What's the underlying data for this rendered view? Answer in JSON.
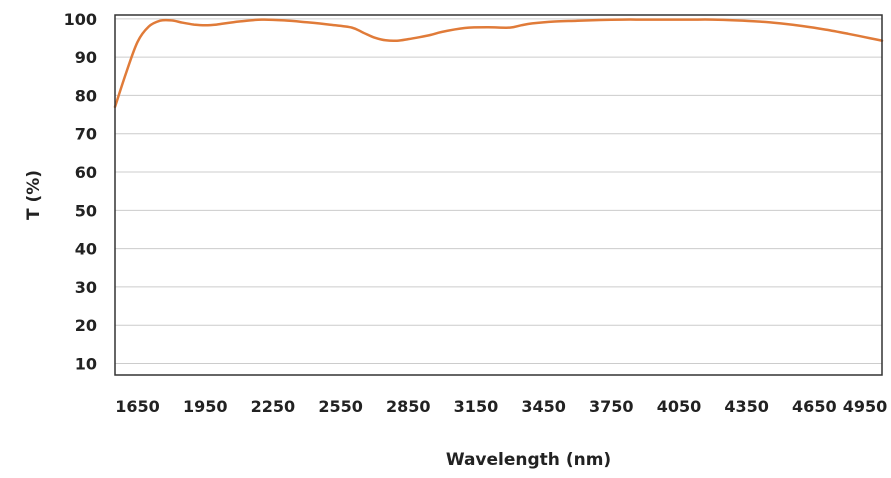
{
  "chart_data": {
    "type": "line",
    "title": "",
    "xlabel": "Wavelength (nm)",
    "ylabel": "T (%)",
    "xlim": [
      1550,
      4950
    ],
    "ylim": [
      7,
      101
    ],
    "x_ticks": [
      1650,
      1950,
      2250,
      2550,
      2850,
      3150,
      3450,
      3750,
      4050,
      4350,
      4650,
      4950
    ],
    "y_ticks": [
      10,
      20,
      30,
      40,
      50,
      60,
      70,
      80,
      90,
      100
    ],
    "grid": "horizontal",
    "legend": "none",
    "series": [
      {
        "color": "#E07B39",
        "x": [
          1550,
          1600,
          1650,
          1700,
          1750,
          1800,
          1850,
          1900,
          1950,
          2000,
          2100,
          2200,
          2300,
          2400,
          2500,
          2600,
          2650,
          2700,
          2750,
          2800,
          2850,
          2900,
          2950,
          3000,
          3100,
          3200,
          3300,
          3350,
          3400,
          3500,
          3600,
          3700,
          3800,
          3900,
          4000,
          4100,
          4200,
          4300,
          4400,
          4500,
          4600,
          4700,
          4800,
          4900,
          4950
        ],
        "y": [
          77,
          86,
          94,
          98,
          99.5,
          99.6,
          99,
          98.5,
          98.3,
          98.5,
          99.3,
          99.8,
          99.6,
          99.1,
          98.5,
          97.7,
          96.4,
          95.1,
          94.4,
          94.3,
          94.7,
          95.2,
          95.8,
          96.6,
          97.6,
          97.8,
          97.7,
          98.3,
          98.8,
          99.3,
          99.5,
          99.7,
          99.8,
          99.8,
          99.8,
          99.8,
          99.8,
          99.6,
          99.3,
          98.8,
          98.1,
          97.2,
          96.1,
          94.9,
          94.3
        ]
      }
    ]
  }
}
